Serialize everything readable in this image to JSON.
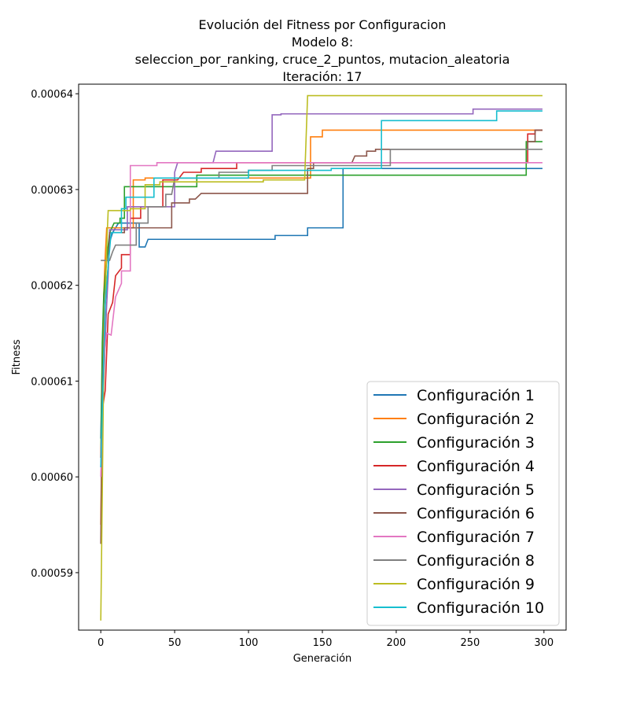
{
  "chart_data": {
    "type": "line",
    "title_lines": [
      "Evolución del Fitness por Configuracion",
      "Modelo 8:",
      "seleccion_por_ranking, cruce_2_puntos, mutacion_aleatoria",
      "Iteración: 17"
    ],
    "xlabel": "Generación",
    "ylabel": "Fitness",
    "xlim": [
      -15,
      315
    ],
    "ylim": [
      0.000584,
      0.000641
    ],
    "xticks": [
      0,
      50,
      100,
      150,
      200,
      250,
      300
    ],
    "xtick_labels": [
      "0",
      "50",
      "100",
      "150",
      "200",
      "250",
      "300"
    ],
    "yticks": [
      0.00059,
      0.0006,
      0.00061,
      0.00062,
      0.00063,
      0.00064
    ],
    "ytick_labels": [
      "0.00059",
      "0.00060",
      "0.00061",
      "0.00062",
      "0.00063",
      "0.00064"
    ],
    "legend_position": "lower-right",
    "series": [
      {
        "name": "Configuración 1",
        "color": "#1f77b4",
        "points": [
          [
            0,
            0.000604
          ],
          [
            1,
            0.000612
          ],
          [
            2,
            0.000618
          ],
          [
            3,
            0.000621
          ],
          [
            5,
            0.000624
          ],
          [
            8,
            0.0006255
          ],
          [
            12,
            0.0006265
          ],
          [
            26,
            0.0006265
          ],
          [
            26,
            0.000624
          ],
          [
            30,
            0.000624
          ],
          [
            32,
            0.0006248
          ],
          [
            118,
            0.0006248
          ],
          [
            118,
            0.0006252
          ],
          [
            140,
            0.0006252
          ],
          [
            140,
            0.000626
          ],
          [
            164,
            0.000626
          ],
          [
            164,
            0.0006322
          ],
          [
            299,
            0.0006322
          ]
        ]
      },
      {
        "name": "Configuración 2",
        "color": "#ff7f0e",
        "points": [
          [
            0,
            0.000595
          ],
          [
            1,
            0.000608
          ],
          [
            2,
            0.000619
          ],
          [
            3,
            0.000623
          ],
          [
            4,
            0.000626
          ],
          [
            22,
            0.000626
          ],
          [
            22,
            0.000631
          ],
          [
            30,
            0.000631
          ],
          [
            30,
            0.0006312
          ],
          [
            142,
            0.0006312
          ],
          [
            142,
            0.0006355
          ],
          [
            150,
            0.0006355
          ],
          [
            150,
            0.0006362
          ],
          [
            299,
            0.0006362
          ]
        ]
      },
      {
        "name": "Configuración 3",
        "color": "#2ca02c",
        "points": [
          [
            0,
            0.000602
          ],
          [
            1,
            0.000614
          ],
          [
            2,
            0.000619
          ],
          [
            4,
            0.0006228
          ],
          [
            6,
            0.0006255
          ],
          [
            9,
            0.0006265
          ],
          [
            13,
            0.0006265
          ],
          [
            13,
            0.000627
          ],
          [
            16,
            0.000627
          ],
          [
            16,
            0.0006303
          ],
          [
            65,
            0.0006303
          ],
          [
            65,
            0.0006315
          ],
          [
            288,
            0.0006315
          ],
          [
            288,
            0.000635
          ],
          [
            299,
            0.000635
          ]
        ]
      },
      {
        "name": "Configuración 4",
        "color": "#d62728",
        "points": [
          [
            0,
            0.000602
          ],
          [
            1,
            0.000607
          ],
          [
            3,
            0.000609
          ],
          [
            5,
            0.000617
          ],
          [
            8,
            0.0006182
          ],
          [
            10,
            0.000621
          ],
          [
            14,
            0.0006218
          ],
          [
            14,
            0.0006232
          ],
          [
            20,
            0.0006232
          ],
          [
            20,
            0.000627
          ],
          [
            27,
            0.000627
          ],
          [
            27,
            0.0006282
          ],
          [
            42,
            0.0006282
          ],
          [
            42,
            0.000631
          ],
          [
            52,
            0.000631
          ],
          [
            56,
            0.0006318
          ],
          [
            68,
            0.0006318
          ],
          [
            68,
            0.0006322
          ],
          [
            92,
            0.0006322
          ],
          [
            92,
            0.0006328
          ],
          [
            289,
            0.0006328
          ],
          [
            289,
            0.0006358
          ],
          [
            294,
            0.0006358
          ],
          [
            294,
            0.0006362
          ],
          [
            299,
            0.0006362
          ]
        ]
      },
      {
        "name": "Configuración 5",
        "color": "#9467bd",
        "points": [
          [
            0,
            0.000601
          ],
          [
            2,
            0.00061
          ],
          [
            4,
            0.000618
          ],
          [
            5,
            0.000621
          ],
          [
            6,
            0.0006258
          ],
          [
            18,
            0.0006258
          ],
          [
            18,
            0.0006282
          ],
          [
            50,
            0.0006282
          ],
          [
            50,
            0.0006318
          ],
          [
            52,
            0.0006328
          ],
          [
            76,
            0.0006328
          ],
          [
            78,
            0.000634
          ],
          [
            116,
            0.000634
          ],
          [
            116,
            0.0006378
          ],
          [
            122,
            0.0006378
          ],
          [
            122,
            0.0006379
          ],
          [
            252,
            0.0006379
          ],
          [
            252,
            0.0006384
          ],
          [
            299,
            0.0006384
          ]
        ]
      },
      {
        "name": "Configuración 6",
        "color": "#8c564b",
        "points": [
          [
            0,
            0.000593
          ],
          [
            1,
            0.000609
          ],
          [
            3,
            0.000618
          ],
          [
            5,
            0.000622
          ],
          [
            6,
            0.0006255
          ],
          [
            16,
            0.0006255
          ],
          [
            16,
            0.000626
          ],
          [
            48,
            0.000626
          ],
          [
            48,
            0.0006286
          ],
          [
            60,
            0.0006286
          ],
          [
            60,
            0.000629
          ],
          [
            64,
            0.000629
          ],
          [
            68,
            0.0006296
          ],
          [
            140,
            0.0006296
          ],
          [
            140,
            0.0006322
          ],
          [
            144,
            0.0006322
          ],
          [
            144,
            0.0006328
          ],
          [
            170,
            0.0006328
          ],
          [
            172,
            0.0006335
          ],
          [
            180,
            0.0006335
          ],
          [
            180,
            0.000634
          ],
          [
            186,
            0.000634
          ],
          [
            186,
            0.0006342
          ],
          [
            289,
            0.0006342
          ],
          [
            289,
            0.000635
          ],
          [
            294,
            0.000635
          ],
          [
            294,
            0.0006362
          ],
          [
            299,
            0.0006362
          ]
        ]
      },
      {
        "name": "Configuración 7",
        "color": "#e377c2",
        "points": [
          [
            0,
            0.0006
          ],
          [
            2,
            0.000612
          ],
          [
            4,
            0.000615
          ],
          [
            7,
            0.0006148
          ],
          [
            10,
            0.0006188
          ],
          [
            14,
            0.0006202
          ],
          [
            14,
            0.0006215
          ],
          [
            20,
            0.0006215
          ],
          [
            20,
            0.0006325
          ],
          [
            38,
            0.0006325
          ],
          [
            38,
            0.0006328
          ],
          [
            299,
            0.0006328
          ]
        ]
      },
      {
        "name": "Configuración 8",
        "color": "#7f7f7f",
        "points": [
          [
            0,
            0.0006226
          ],
          [
            6,
            0.0006226
          ],
          [
            8,
            0.0006235
          ],
          [
            10,
            0.0006242
          ],
          [
            24,
            0.0006242
          ],
          [
            24,
            0.0006265
          ],
          [
            32,
            0.0006265
          ],
          [
            32,
            0.0006282
          ],
          [
            44,
            0.0006282
          ],
          [
            44,
            0.0006295
          ],
          [
            48,
            0.0006295
          ],
          [
            50,
            0.0006312
          ],
          [
            80,
            0.0006312
          ],
          [
            80,
            0.0006318
          ],
          [
            100,
            0.0006318
          ],
          [
            100,
            0.000632
          ],
          [
            116,
            0.000632
          ],
          [
            116,
            0.0006325
          ],
          [
            196,
            0.0006325
          ],
          [
            196,
            0.0006342
          ],
          [
            299,
            0.0006342
          ]
        ]
      },
      {
        "name": "Configuración 9",
        "color": "#bcbd22",
        "points": [
          [
            0,
            0.000585
          ],
          [
            1,
            0.000598
          ],
          [
            2,
            0.000612
          ],
          [
            4,
            0.000624
          ],
          [
            5,
            0.0006278
          ],
          [
            20,
            0.0006278
          ],
          [
            20,
            0.000628
          ],
          [
            30,
            0.000628
          ],
          [
            30,
            0.0006305
          ],
          [
            40,
            0.0006305
          ],
          [
            40,
            0.0006308
          ],
          [
            110,
            0.0006308
          ],
          [
            110,
            0.000631
          ],
          [
            138,
            0.000631
          ],
          [
            140,
            0.0006398
          ],
          [
            299,
            0.0006398
          ]
        ]
      },
      {
        "name": "Configuración 10",
        "color": "#17becf",
        "points": [
          [
            0,
            0.000601
          ],
          [
            1,
            0.000607
          ],
          [
            3,
            0.000618
          ],
          [
            5,
            0.000622
          ],
          [
            7,
            0.0006255
          ],
          [
            14,
            0.0006255
          ],
          [
            14,
            0.000628
          ],
          [
            17,
            0.000628
          ],
          [
            17,
            0.0006292
          ],
          [
            36,
            0.0006292
          ],
          [
            36,
            0.0006312
          ],
          [
            100,
            0.0006312
          ],
          [
            100,
            0.000632
          ],
          [
            156,
            0.000632
          ],
          [
            156,
            0.0006322
          ],
          [
            190,
            0.0006322
          ],
          [
            190,
            0.0006372
          ],
          [
            268,
            0.0006372
          ],
          [
            268,
            0.0006382
          ],
          [
            299,
            0.0006382
          ]
        ]
      }
    ]
  }
}
